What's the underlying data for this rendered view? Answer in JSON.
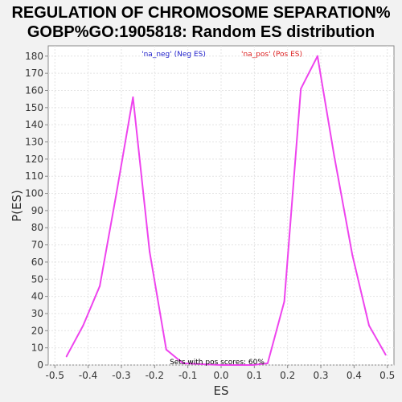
{
  "chart_data": {
    "type": "line",
    "title_line1": "REGULATION OF CHROMOSOME SEPARATION%",
    "title_line2": "GOBP%GO:1905818: Random ES distribution",
    "xlabel": "ES",
    "ylabel": "P(ES)",
    "xlim": [
      -0.52,
      0.52
    ],
    "ylim": [
      0,
      186
    ],
    "x_ticks": [
      "-0.5",
      "-0.4",
      "-0.3",
      "-0.2",
      "-0.1",
      "0.0",
      "0.1",
      "0.2",
      "0.3",
      "0.4",
      "0.5"
    ],
    "y_ticks": [
      "0",
      "10",
      "20",
      "30",
      "40",
      "50",
      "60",
      "70",
      "80",
      "90",
      "100",
      "110",
      "120",
      "130",
      "140",
      "150",
      "160",
      "170",
      "180"
    ],
    "grid": true,
    "legend": {
      "position": "top",
      "entries": [
        {
          "label": "'na_neg' (Neg ES)",
          "color": "#2222cc"
        },
        {
          "label": "'na_pos' (Pos ES)",
          "color": "#dd2222"
        }
      ]
    },
    "annotation": "Sets with pos scores: 60%",
    "series": [
      {
        "color": "#ee44ee",
        "x": [
          -0.465,
          -0.415,
          -0.365,
          -0.315,
          -0.265,
          -0.215,
          -0.165,
          -0.115,
          0.0,
          0.095,
          0.14,
          0.19,
          0.24,
          0.29,
          0.34,
          0.395,
          0.445,
          0.495
        ],
        "y": [
          5,
          23,
          46,
          100,
          156,
          66,
          9,
          1,
          0,
          0,
          1,
          37,
          161,
          180,
          122,
          64,
          23,
          6
        ]
      }
    ]
  }
}
